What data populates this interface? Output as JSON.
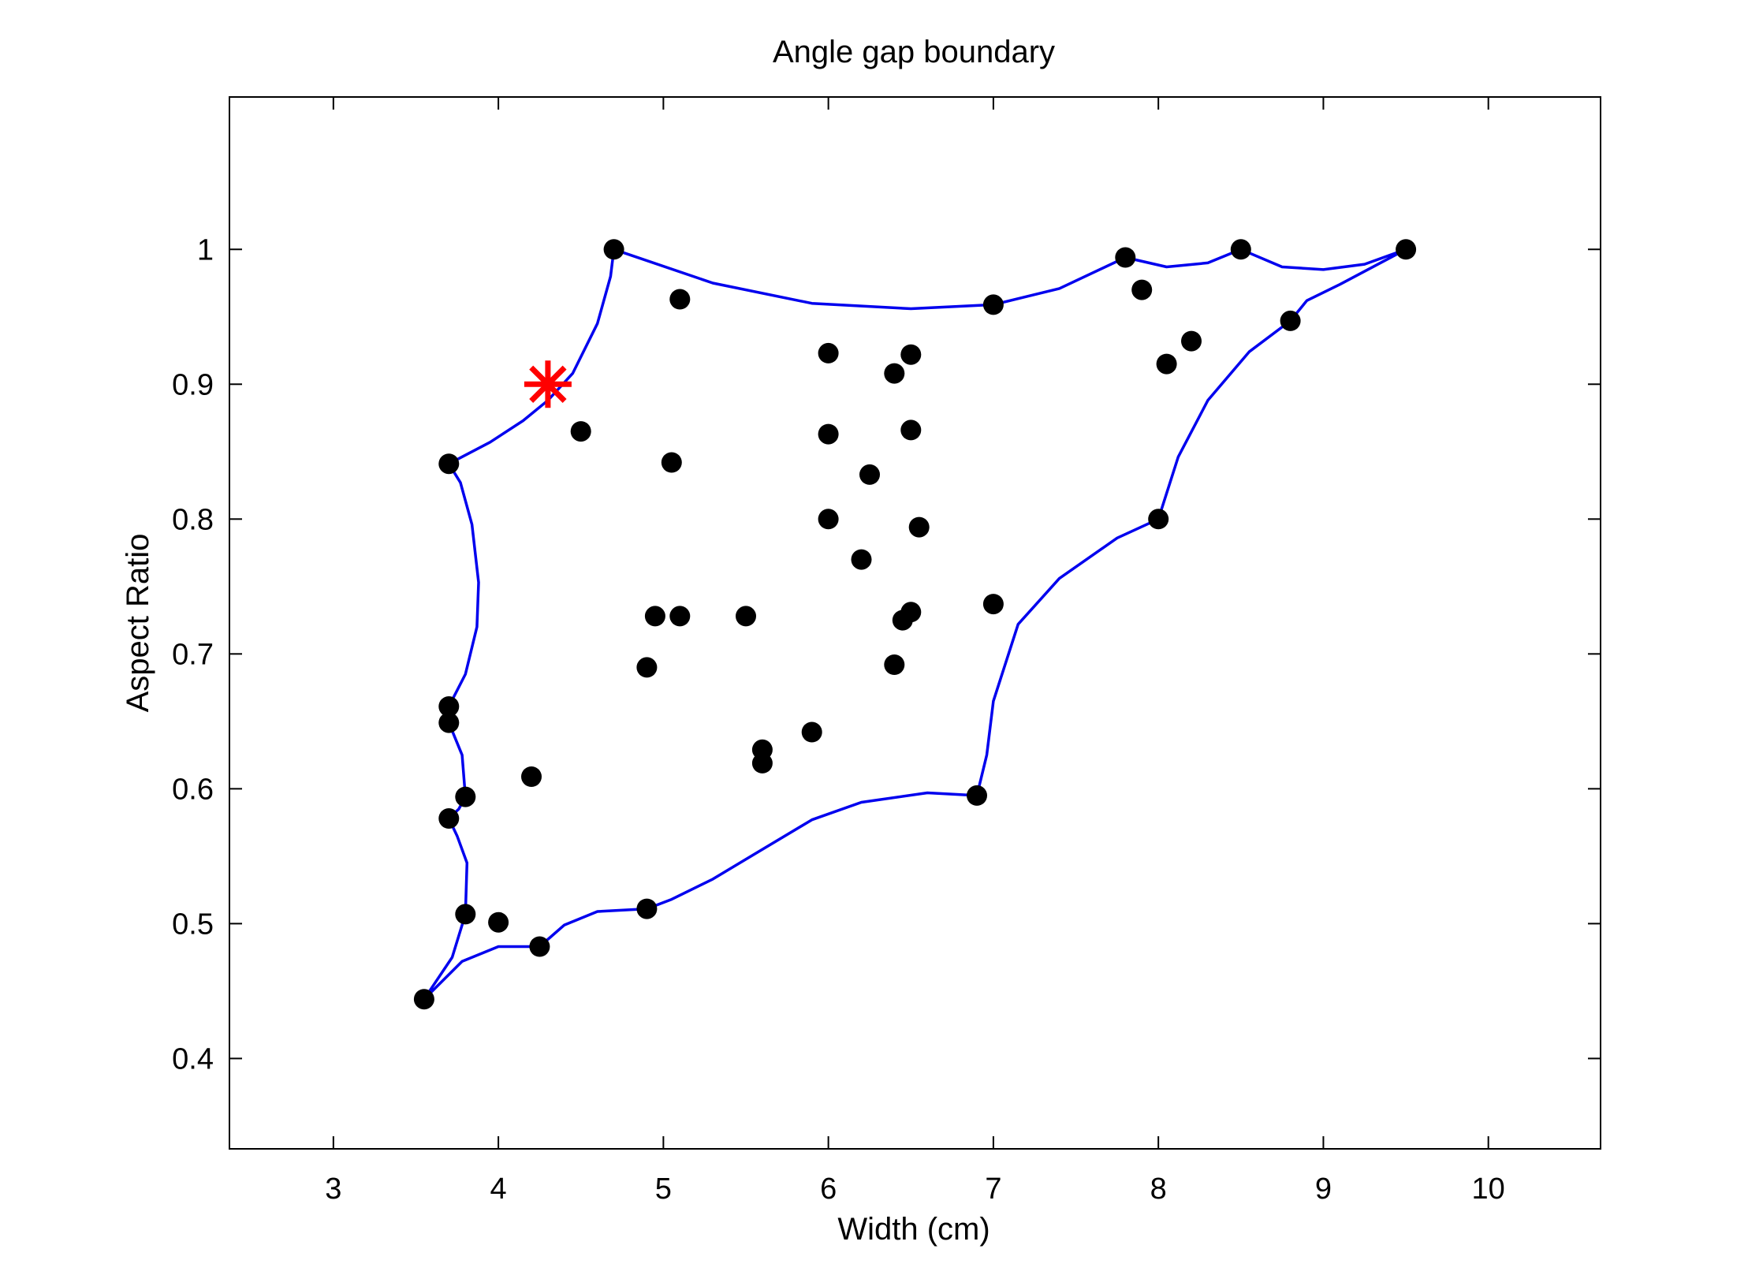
{
  "chart_data": {
    "type": "scatter",
    "title": "Angle gap boundary",
    "xlabel": "Width (cm)",
    "ylabel": "Aspect Ratio",
    "xlim": [
      2.37,
      10.68
    ],
    "ylim": [
      0.333,
      1.113
    ],
    "xticks": [
      3,
      4,
      5,
      6,
      7,
      8,
      9,
      10
    ],
    "yticks": [
      0.4,
      0.5,
      0.6,
      0.7,
      0.8,
      0.9,
      1
    ],
    "xtick_labels": [
      "3",
      "4",
      "5",
      "6",
      "7",
      "8",
      "9",
      "10"
    ],
    "ytick_labels": [
      "0.4",
      "0.5",
      "0.6",
      "0.7",
      "0.8",
      "0.9",
      "1"
    ],
    "grid": false,
    "colors": {
      "points": "#000000",
      "boundary": "#0000ee",
      "marker": "#ff0000"
    },
    "points": [
      [
        4.7,
        1.0
      ],
      [
        5.1,
        0.963
      ],
      [
        7.0,
        0.959
      ],
      [
        7.8,
        0.994
      ],
      [
        7.9,
        0.97
      ],
      [
        8.5,
        1.0
      ],
      [
        9.5,
        1.0
      ],
      [
        8.8,
        0.947
      ],
      [
        8.2,
        0.932
      ],
      [
        8.05,
        0.915
      ],
      [
        6.0,
        0.923
      ],
      [
        6.5,
        0.922
      ],
      [
        6.4,
        0.908
      ],
      [
        6.0,
        0.863
      ],
      [
        6.5,
        0.866
      ],
      [
        4.5,
        0.865
      ],
      [
        5.05,
        0.842
      ],
      [
        3.7,
        0.841
      ],
      [
        6.25,
        0.833
      ],
      [
        6.0,
        0.8
      ],
      [
        6.55,
        0.794
      ],
      [
        8.0,
        0.8
      ],
      [
        6.2,
        0.77
      ],
      [
        4.95,
        0.728
      ],
      [
        5.1,
        0.728
      ],
      [
        5.5,
        0.728
      ],
      [
        7.0,
        0.737
      ],
      [
        6.5,
        0.731
      ],
      [
        6.45,
        0.725
      ],
      [
        4.9,
        0.69
      ],
      [
        6.4,
        0.692
      ],
      [
        3.7,
        0.661
      ],
      [
        3.7,
        0.649
      ],
      [
        5.6,
        0.629
      ],
      [
        5.9,
        0.642
      ],
      [
        5.6,
        0.619
      ],
      [
        4.2,
        0.609
      ],
      [
        6.9,
        0.595
      ],
      [
        3.8,
        0.594
      ],
      [
        3.7,
        0.578
      ],
      [
        4.9,
        0.511
      ],
      [
        3.8,
        0.507
      ],
      [
        4.0,
        0.501
      ],
      [
        4.25,
        0.483
      ],
      [
        3.55,
        0.444
      ]
    ],
    "boundary": [
      [
        4.7,
        1.0
      ],
      [
        5.3,
        0.975
      ],
      [
        5.9,
        0.96
      ],
      [
        6.5,
        0.956
      ],
      [
        7.0,
        0.959
      ],
      [
        7.4,
        0.971
      ],
      [
        7.8,
        0.994
      ],
      [
        8.05,
        0.987
      ],
      [
        8.3,
        0.99
      ],
      [
        8.5,
        1.0
      ],
      [
        8.75,
        0.987
      ],
      [
        9.0,
        0.985
      ],
      [
        9.25,
        0.989
      ],
      [
        9.5,
        1.0
      ],
      [
        9.1,
        0.974
      ],
      [
        8.9,
        0.962
      ],
      [
        8.8,
        0.947
      ],
      [
        8.55,
        0.924
      ],
      [
        8.3,
        0.888
      ],
      [
        8.12,
        0.846
      ],
      [
        8.0,
        0.8
      ],
      [
        7.75,
        0.786
      ],
      [
        7.4,
        0.756
      ],
      [
        7.15,
        0.722
      ],
      [
        7.0,
        0.665
      ],
      [
        6.96,
        0.625
      ],
      [
        6.9,
        0.595
      ],
      [
        6.6,
        0.597
      ],
      [
        6.2,
        0.59
      ],
      [
        5.9,
        0.577
      ],
      [
        5.6,
        0.555
      ],
      [
        5.3,
        0.533
      ],
      [
        5.05,
        0.518
      ],
      [
        4.9,
        0.511
      ],
      [
        4.6,
        0.509
      ],
      [
        4.4,
        0.499
      ],
      [
        4.25,
        0.483
      ],
      [
        4.0,
        0.483
      ],
      [
        3.78,
        0.472
      ],
      [
        3.55,
        0.444
      ],
      [
        3.72,
        0.475
      ],
      [
        3.8,
        0.507
      ],
      [
        3.81,
        0.545
      ],
      [
        3.75,
        0.565
      ],
      [
        3.7,
        0.578
      ],
      [
        3.76,
        0.585
      ],
      [
        3.8,
        0.594
      ],
      [
        3.78,
        0.625
      ],
      [
        3.7,
        0.649
      ],
      [
        3.7,
        0.661
      ],
      [
        3.8,
        0.685
      ],
      [
        3.87,
        0.72
      ],
      [
        3.88,
        0.753
      ],
      [
        3.84,
        0.796
      ],
      [
        3.77,
        0.827
      ],
      [
        3.7,
        0.841
      ],
      [
        3.95,
        0.857
      ],
      [
        4.15,
        0.873
      ],
      [
        4.3,
        0.888
      ],
      [
        4.45,
        0.908
      ],
      [
        4.6,
        0.945
      ],
      [
        4.68,
        0.98
      ],
      [
        4.7,
        1.0
      ]
    ],
    "marker": {
      "x": 4.3,
      "y": 0.9,
      "symbol": "asterisk"
    }
  }
}
